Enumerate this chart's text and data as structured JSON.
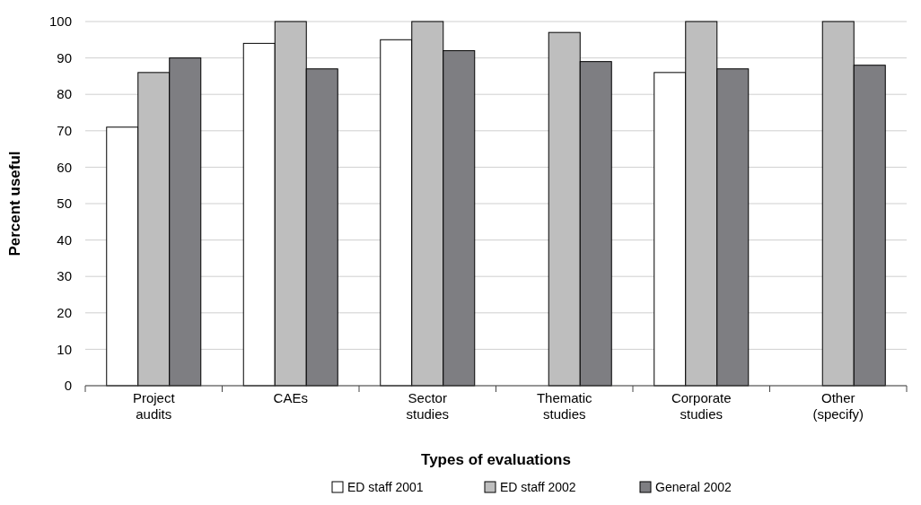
{
  "chart_data": {
    "type": "bar",
    "xlabel": "Types of evaluations",
    "ylabel": "Percent useful",
    "categories": [
      "Project\naudits",
      "CAEs",
      "Sector\nstudies",
      "Thematic\nstudies",
      "Corporate\nstudies",
      "Other\n(specify)"
    ],
    "series": [
      {
        "name": "ED staff 2001",
        "color": "#ffffff",
        "values": [
          71,
          94,
          95,
          null,
          86,
          null
        ]
      },
      {
        "name": "ED staff 2002",
        "color": "#bebebe",
        "values": [
          86,
          100,
          100,
          97,
          100,
          100
        ]
      },
      {
        "name": "General 2002",
        "color": "#7e7e82",
        "values": [
          90,
          87,
          92,
          89,
          87,
          88
        ]
      }
    ],
    "ylim": [
      0,
      100
    ],
    "yticks": [
      0,
      10,
      20,
      30,
      40,
      50,
      60,
      70,
      80,
      90,
      100
    ],
    "grid": "y",
    "legend": "bottom"
  }
}
